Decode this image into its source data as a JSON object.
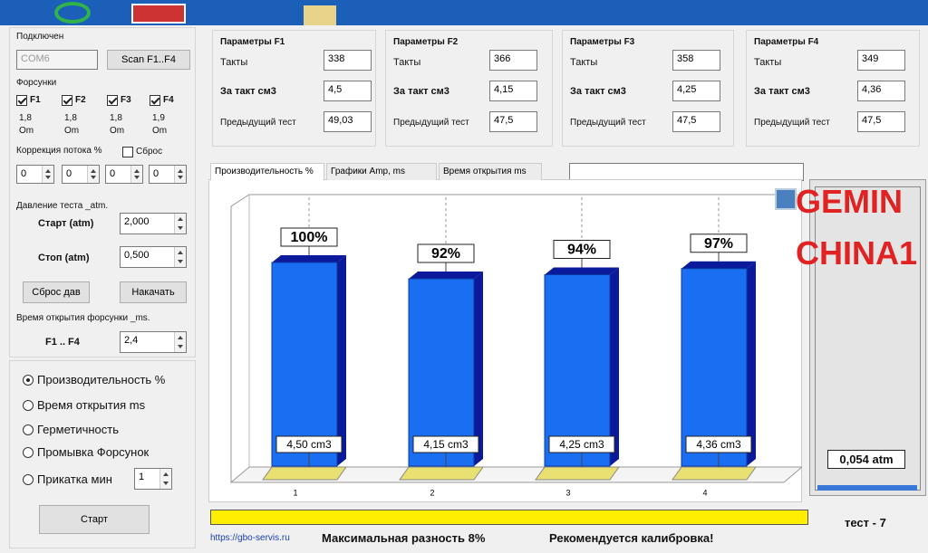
{
  "connection": {
    "label": "Подключен",
    "port": "COM6",
    "scan_button": "Scan F1..F4"
  },
  "injectors": {
    "label": "Форсунки",
    "items": [
      {
        "name": "F1",
        "checked": true,
        "resistance": "1,8",
        "unit": "Om"
      },
      {
        "name": "F2",
        "checked": true,
        "resistance": "1,8",
        "unit": "Om"
      },
      {
        "name": "F3",
        "checked": true,
        "resistance": "1,8",
        "unit": "Om"
      },
      {
        "name": "F4",
        "checked": true,
        "resistance": "1,9",
        "unit": "Om"
      }
    ]
  },
  "flow_correction": {
    "label": "Коррекция потока %",
    "reset": "Сброс",
    "reset_checked": false,
    "values": [
      "0",
      "0",
      "0",
      "0"
    ]
  },
  "pressure": {
    "label": "Давление теста _atm.",
    "start_label": "Старт (atm)",
    "start": "2,000",
    "stop_label": "Стоп (atm)",
    "stop": "0,500",
    "reset_button": "Сброс дав",
    "pump_button": "Накачать"
  },
  "opening_time": {
    "label": "Время открытия форсунки _ms.",
    "field_label": "F1 .. F4",
    "value": "2,4"
  },
  "modes": {
    "options": [
      "Производительность %",
      "Время открытия ms",
      "Герметичность",
      "Промывка Форсунок",
      "Прикатка мин"
    ],
    "selected": 0,
    "run_in_value": "1",
    "start_button": "Старт"
  },
  "parameters": [
    {
      "title": "Параметры F1",
      "rows": [
        {
          "label": "Такты",
          "value": "338"
        },
        {
          "label": "За такт см3",
          "value": "4,5"
        },
        {
          "label": "Предыдущий тест",
          "value": "49,03"
        }
      ]
    },
    {
      "title": "Параметры F2",
      "rows": [
        {
          "label": "Такты",
          "value": "366"
        },
        {
          "label": "За такт см3",
          "value": "4,15"
        },
        {
          "label": "Предыдущий тест",
          "value": "47,5"
        }
      ]
    },
    {
      "title": "Параметры F3",
      "rows": [
        {
          "label": "Такты",
          "value": "358"
        },
        {
          "label": "За такт см3",
          "value": "4,25"
        },
        {
          "label": "Предыдущий тест",
          "value": "47,5"
        }
      ]
    },
    {
      "title": "Параметры F4",
      "rows": [
        {
          "label": "Такты",
          "value": "349"
        },
        {
          "label": "За такт см3",
          "value": "4,36"
        },
        {
          "label": "Предыдущий тест",
          "value": "47,5"
        }
      ]
    }
  ],
  "tabs": [
    "Производительность %",
    "Графики  Amp, ms",
    "Время открытия ms"
  ],
  "active_tab": 0,
  "chart_data": {
    "type": "bar",
    "categories": [
      "1",
      "2",
      "3",
      "4"
    ],
    "values": [
      100,
      92,
      94,
      97
    ],
    "value_labels": [
      "100%",
      "92%",
      "94%",
      "97%"
    ],
    "volume_labels": [
      "4,50 cm3",
      "4,15 cm3",
      "4,25 cm3",
      "4,36 cm3"
    ],
    "ylim": [
      0,
      100
    ],
    "color": "#1a6ef2",
    "side_color": "#0a1a9a",
    "base_color": "#e8e070"
  },
  "watermark": [
    "GEMIN",
    "CHINA1"
  ],
  "gauge": "0,054 atm",
  "status": {
    "test": "тест - 7",
    "link": "https://gbo-servis.ru",
    "max_difference": "Максимальная разность  8%",
    "recommendation": "Рекомендуется калибровка!"
  }
}
